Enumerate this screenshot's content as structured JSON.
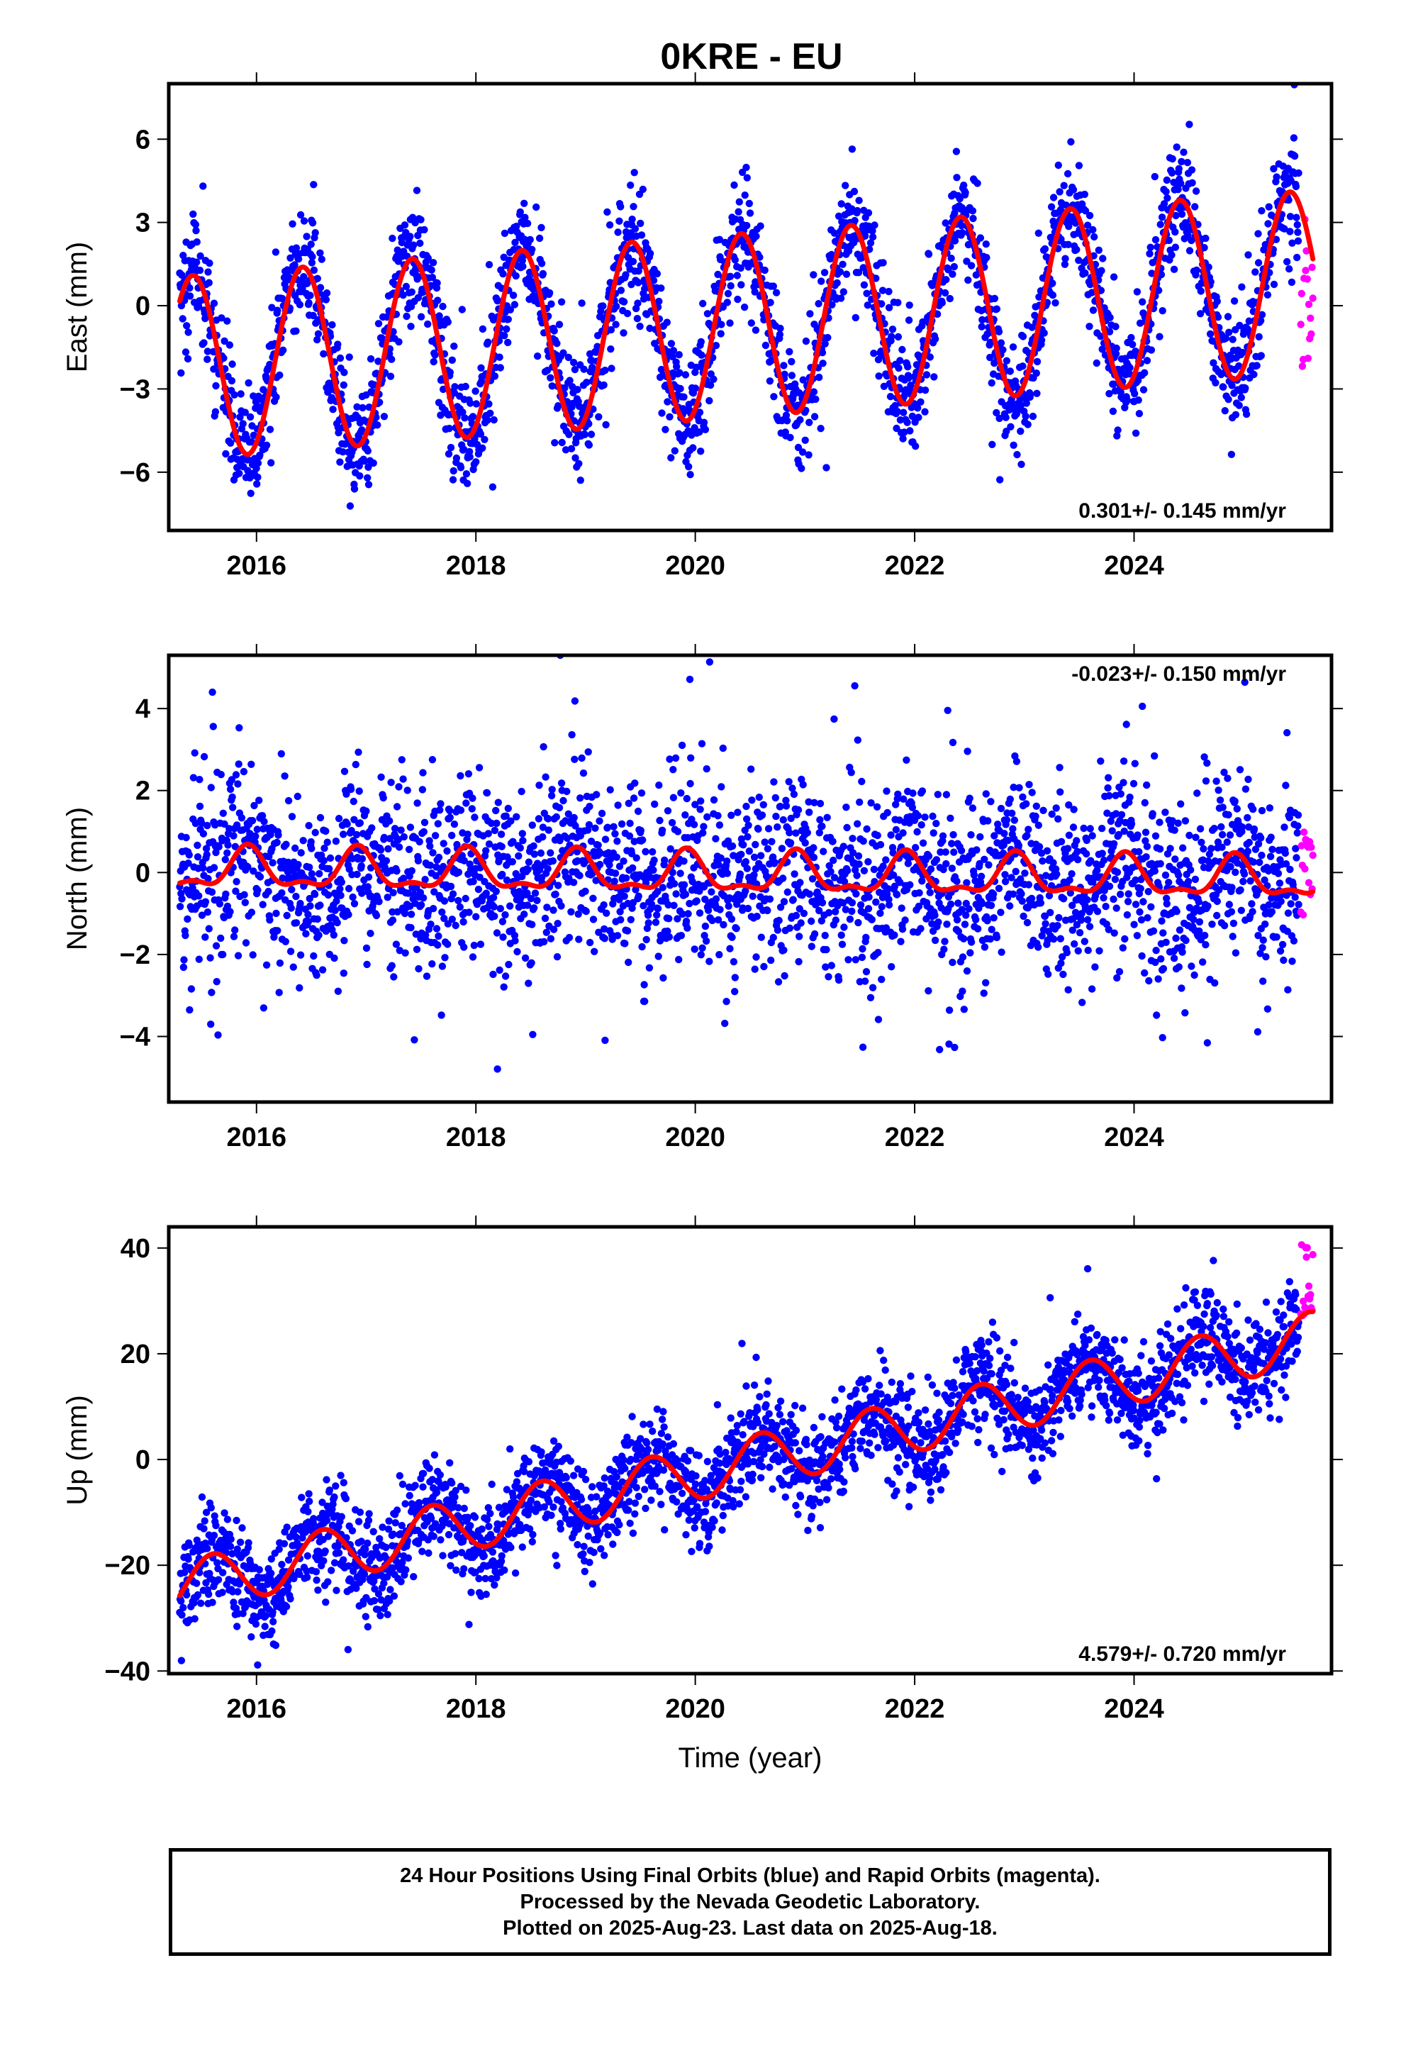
{
  "title": "0KRE - EU",
  "colors": {
    "final_points": "#0000ff",
    "rapid_points": "#ff00ff",
    "model_line": "#ff0000",
    "frame": "#000000"
  },
  "chart_data": [
    {
      "type": "scatter",
      "component": "east",
      "ylabel": "East (mm)",
      "xlim": [
        2015.2,
        2025.8
      ],
      "ylim": [
        -8.1,
        8.0
      ],
      "yticks": [
        6,
        3,
        0,
        -3,
        -6
      ],
      "ytick_labels": [
        "6",
        "3",
        "0",
        "−3",
        "−6"
      ],
      "xticks": [
        2016,
        2018,
        2020,
        2022,
        2024
      ],
      "xtick_labels": [
        "2016",
        "2018",
        "2020",
        "2022",
        "2024"
      ],
      "rate_text": "0.301+/- 0.145 mm/yr",
      "rate_position": "bottom-right",
      "model": {
        "offset": -0.83,
        "rate": 0.301,
        "annual_amp": 3.3,
        "peak_year_fraction": 0.42,
        "semiannual_amp": 0.0,
        "start": 2015.3,
        "end": 2025.63
      },
      "final_orbits": {
        "start": 2015.3,
        "end": 2025.5,
        "noise_std": 1.05
      },
      "rapid_orbits": {
        "start": 2025.52,
        "end": 2025.63,
        "values_range": [
          -2.2,
          4.1
        ]
      }
    },
    {
      "type": "scatter",
      "component": "north",
      "ylabel": "North (mm)",
      "xlim": [
        2015.2,
        2025.8
      ],
      "ylim": [
        -5.6,
        5.3
      ],
      "yticks": [
        4,
        2,
        0,
        -2,
        -4
      ],
      "ytick_labels": [
        "4",
        "2",
        "0",
        "−2",
        "−4"
      ],
      "xticks": [
        2016,
        2018,
        2020,
        2022,
        2024
      ],
      "xtick_labels": [
        "2016",
        "2018",
        "2020",
        "2022",
        "2024"
      ],
      "rate_text": "-0.023+/- 0.150 mm/yr",
      "rate_position": "top-right",
      "model": {
        "offset": -0.05,
        "rate": -0.023,
        "annual_amp": 0.45,
        "peak_year_fraction": 0.92,
        "semiannual_amp": 0.2,
        "start": 2015.3,
        "end": 2025.63
      },
      "final_orbits": {
        "start": 2015.3,
        "end": 2025.5,
        "noise_std": 1.1
      },
      "rapid_orbits": {
        "start": 2025.52,
        "end": 2025.63,
        "values_range": [
          -1.4,
          1.7
        ]
      }
    },
    {
      "type": "scatter",
      "component": "up",
      "ylabel": "Up (mm)",
      "xlabel": "Time (year)",
      "xlim": [
        2015.2,
        2025.8
      ],
      "ylim": [
        -40.5,
        44.0
      ],
      "yticks": [
        40,
        20,
        0,
        -20,
        -40
      ],
      "ytick_labels": [
        "40",
        "20",
        "0",
        "−20",
        "−40"
      ],
      "xticks": [
        2016,
        2018,
        2020,
        2022,
        2024
      ],
      "xtick_labels": [
        "2016",
        "2018",
        "2020",
        "2022",
        "2024"
      ],
      "rate_text": "4.579+/- 0.720 mm/yr",
      "rate_position": "bottom-right",
      "model": {
        "offset": -2.7,
        "rate": 4.579,
        "annual_amp": 5.0,
        "peak_year_fraction": 0.6,
        "semiannual_amp": 0.0,
        "start": 2015.3,
        "end": 2025.63
      },
      "final_orbits": {
        "start": 2015.3,
        "end": 2025.5,
        "noise_std": 4.5
      },
      "rapid_orbits": {
        "start": 2025.52,
        "end": 2025.63,
        "values_range": [
          27.0,
          42.0
        ]
      }
    }
  ],
  "caption": {
    "line1": "24 Hour Positions Using Final Orbits (blue) and Rapid Orbits (magenta).",
    "line2": "Processed by the Nevada Geodetic Laboratory.",
    "line3": "Plotted on 2025-Aug-23. Last data on 2025-Aug-18."
  }
}
